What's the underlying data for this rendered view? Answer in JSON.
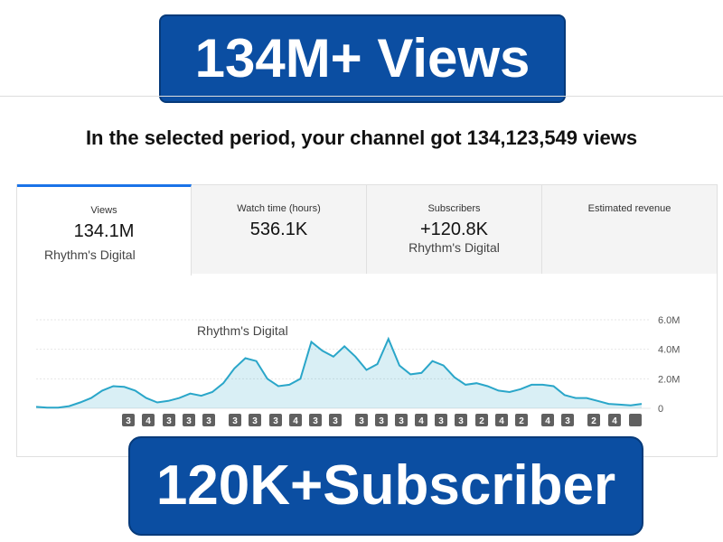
{
  "header": {
    "title": "134M+ Views"
  },
  "headline": "In the selected period, your channel got 134,123,549 views",
  "tabs": [
    {
      "label": "Views",
      "value": "134.1M",
      "note": "Rhythm's Digital"
    },
    {
      "label": "Watch time (hours)",
      "value": "536.1K"
    },
    {
      "label": "Subscribers",
      "value": "+120.8K",
      "note": "Rhythm's Digital"
    },
    {
      "label": "Estimated revenue"
    }
  ],
  "chart_data": {
    "type": "line",
    "watermark": "Rhythm's Digital",
    "color": "#2aa6c9",
    "values": [
      100000,
      50000,
      50000,
      150000,
      400000,
      700000,
      1200000,
      1500000,
      1450000,
      1200000,
      700000,
      400000,
      500000,
      700000,
      1000000,
      850000,
      1100000,
      1700000,
      2700000,
      3400000,
      3200000,
      2000000,
      1500000,
      1600000,
      2000000,
      4500000,
      3900000,
      3500000,
      4200000,
      3500000,
      2600000,
      3000000,
      4700000,
      2900000,
      2300000,
      2400000,
      3200000,
      2900000,
      2100000,
      1600000,
      1700000,
      1500000,
      1200000,
      1100000,
      1300000,
      1600000,
      1600000,
      1500000,
      900000,
      700000,
      700000,
      500000,
      300000,
      250000,
      200000,
      300000
    ],
    "ylim": [
      0,
      6000000
    ],
    "yticks": [
      0,
      {
        "value": 2000000,
        "label": "2.0M"
      },
      {
        "value": 4000000,
        "label": "4.0M"
      },
      {
        "value": 6000000,
        "label": "6.0M"
      }
    ],
    "grid": true,
    "badges": [
      "3",
      "4",
      "3",
      "3",
      "3",
      "3",
      "3",
      "3",
      "4",
      "3",
      "3",
      "3",
      "3",
      "3",
      "4",
      "3",
      "3",
      "2",
      "4",
      "2",
      "4",
      "3",
      "2",
      "4"
    ]
  },
  "footer": {
    "title": "120K+Subscriber"
  }
}
